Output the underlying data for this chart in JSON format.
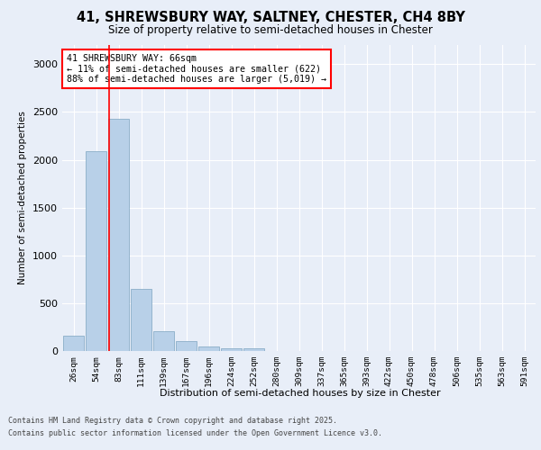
{
  "title_line1": "41, SHREWSBURY WAY, SALTNEY, CHESTER, CH4 8BY",
  "title_line2": "Size of property relative to semi-detached houses in Chester",
  "xlabel": "Distribution of semi-detached houses by size in Chester",
  "ylabel": "Number of semi-detached properties",
  "categories": [
    "26sqm",
    "54sqm",
    "83sqm",
    "111sqm",
    "139sqm",
    "167sqm",
    "196sqm",
    "224sqm",
    "252sqm",
    "280sqm",
    "309sqm",
    "337sqm",
    "365sqm",
    "393sqm",
    "422sqm",
    "450sqm",
    "478sqm",
    "506sqm",
    "535sqm",
    "563sqm",
    "591sqm"
  ],
  "values": [
    160,
    2090,
    2430,
    650,
    210,
    100,
    50,
    30,
    25,
    0,
    0,
    0,
    0,
    0,
    0,
    0,
    0,
    0,
    0,
    0,
    0
  ],
  "bar_color": "#b8d0e8",
  "bar_edge_color": "#8aaec8",
  "subject_sqm": 66,
  "annotation_text": "41 SHREWSBURY WAY: 66sqm\n← 11% of semi-detached houses are smaller (622)\n88% of semi-detached houses are larger (5,019) →",
  "ylim": [
    0,
    3200
  ],
  "yticks": [
    0,
    500,
    1000,
    1500,
    2000,
    2500,
    3000
  ],
  "footer_line1": "Contains HM Land Registry data © Crown copyright and database right 2025.",
  "footer_line2": "Contains public sector information licensed under the Open Government Licence v3.0.",
  "background_color": "#e8eef8",
  "plot_bg_color": "#e8eef8",
  "red_line_x": 1.57
}
